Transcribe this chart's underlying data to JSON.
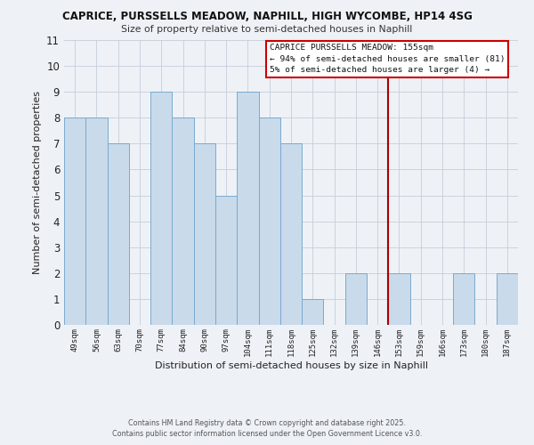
{
  "title": "CAPRICE, PURSSELLS MEADOW, NAPHILL, HIGH WYCOMBE, HP14 4SG",
  "subtitle": "Size of property relative to semi-detached houses in Naphill",
  "xlabel": "Distribution of semi-detached houses by size in Naphill",
  "ylabel": "Number of semi-detached properties",
  "bar_labels": [
    "49sqm",
    "56sqm",
    "63sqm",
    "70sqm",
    "77sqm",
    "84sqm",
    "90sqm",
    "97sqm",
    "104sqm",
    "111sqm",
    "118sqm",
    "125sqm",
    "132sqm",
    "139sqm",
    "146sqm",
    "153sqm",
    "159sqm",
    "166sqm",
    "173sqm",
    "180sqm",
    "187sqm"
  ],
  "bar_heights": [
    8,
    8,
    7,
    0,
    9,
    8,
    7,
    5,
    9,
    8,
    7,
    1,
    0,
    2,
    0,
    2,
    0,
    0,
    2,
    0,
    2
  ],
  "bar_color": "#c9daea",
  "bar_edge_color": "#7aaacf",
  "grid_color": "#c5cdd8",
  "background_color": "#eef2f7",
  "ylim": [
    0,
    11
  ],
  "yticks": [
    0,
    1,
    2,
    3,
    4,
    5,
    6,
    7,
    8,
    9,
    10,
    11
  ],
  "property_line_x": 15.0,
  "property_line_color": "#aa0000",
  "annotation_title": "CAPRICE PURSSELLS MEADOW: 155sqm",
  "annotation_line1": "← 94% of semi-detached houses are smaller (81)",
  "annotation_line2": "5% of semi-detached houses are larger (4) →",
  "annotation_box_color": "#ffffff",
  "annotation_box_edge": "#cc0000",
  "footer1": "Contains HM Land Registry data © Crown copyright and database right 2025.",
  "footer2": "Contains public sector information licensed under the Open Government Licence v3.0."
}
